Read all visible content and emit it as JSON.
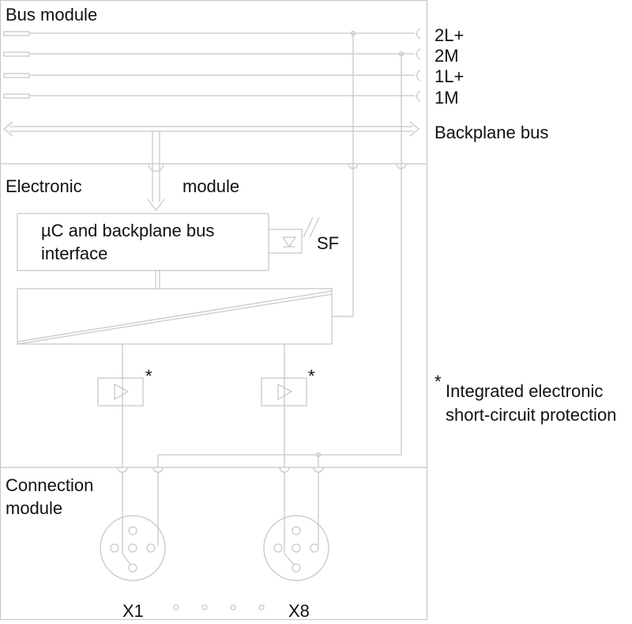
{
  "sections": {
    "bus_module": "Bus module",
    "electronic": [
      "Electronic",
      "module"
    ],
    "connection": [
      "Connection",
      "module"
    ]
  },
  "terminals": [
    "2L+",
    "2M",
    "1L+",
    "1M"
  ],
  "backplane_bus": "Backplane bus",
  "controller": [
    "µC and backplane bus",
    "interface"
  ],
  "sf": "SF",
  "outputs": [
    "*",
    "*"
  ],
  "footnote": {
    "marker": "*",
    "lines": [
      "Integrated electronic",
      "short-circuit protection"
    ]
  },
  "connectors": [
    "X1",
    "X8"
  ]
}
